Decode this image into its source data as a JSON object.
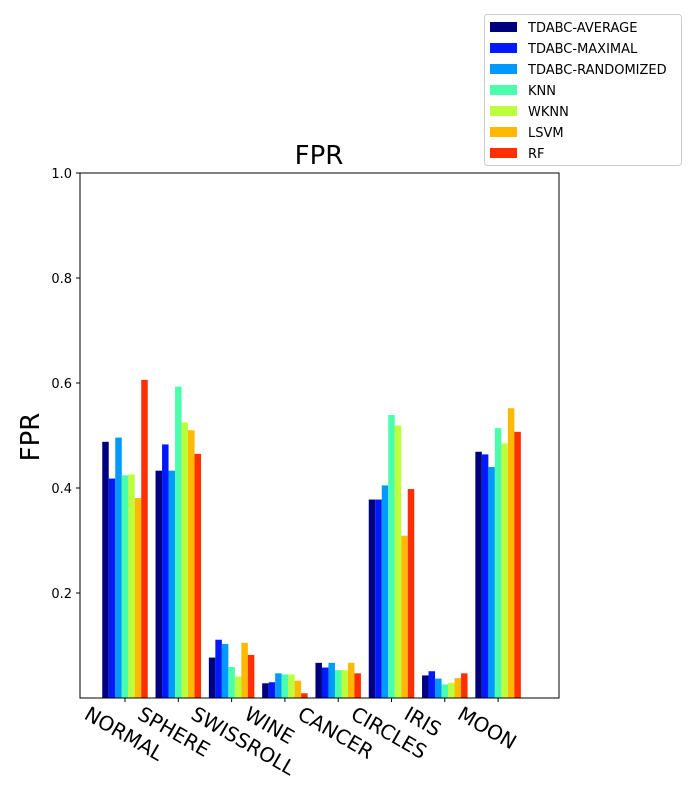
{
  "chart_data": {
    "type": "bar",
    "title": "FPR",
    "xlabel": "",
    "ylabel": "FPR",
    "ylim": [
      0,
      1.0
    ],
    "yticks": [
      "0.2",
      "0.4",
      "0.6",
      "0.8",
      "1.0"
    ],
    "grid": false,
    "legend_position": "top-right",
    "categories": [
      "NORMAL",
      "SPHERE",
      "SWISSROLL",
      "WINE",
      "CANCER",
      "CIRCLES",
      "IRIS",
      "MOON"
    ],
    "series": [
      {
        "name": "TDABC-AVERAGE",
        "color": "#00007f",
        "values": [
          0.488,
          0.433,
          0.077,
          0.028,
          0.067,
          0.378,
          0.043,
          0.469
        ]
      },
      {
        "name": "TDABC-MAXIMAL",
        "color": "#0019ff",
        "values": [
          0.418,
          0.483,
          0.111,
          0.03,
          0.058,
          0.378,
          0.051,
          0.464
        ]
      },
      {
        "name": "TDABC-RANDOMIZED",
        "color": "#0099ff",
        "values": [
          0.496,
          0.433,
          0.103,
          0.047,
          0.067,
          0.405,
          0.037,
          0.44
        ]
      },
      {
        "name": "KNN",
        "color": "#49ffad",
        "values": [
          0.424,
          0.593,
          0.059,
          0.045,
          0.053,
          0.539,
          0.026,
          0.514
        ]
      },
      {
        "name": "WKNN",
        "color": "#bcff3c",
        "values": [
          0.426,
          0.525,
          0.041,
          0.045,
          0.053,
          0.519,
          0.029,
          0.485
        ]
      },
      {
        "name": "LSVM",
        "color": "#ffb900",
        "values": [
          0.381,
          0.51,
          0.105,
          0.033,
          0.067,
          0.309,
          0.038,
          0.552
        ]
      },
      {
        "name": "RF",
        "color": "#ff2f00",
        "values": [
          0.606,
          0.465,
          0.082,
          0.009,
          0.047,
          0.398,
          0.047,
          0.507
        ]
      }
    ]
  }
}
